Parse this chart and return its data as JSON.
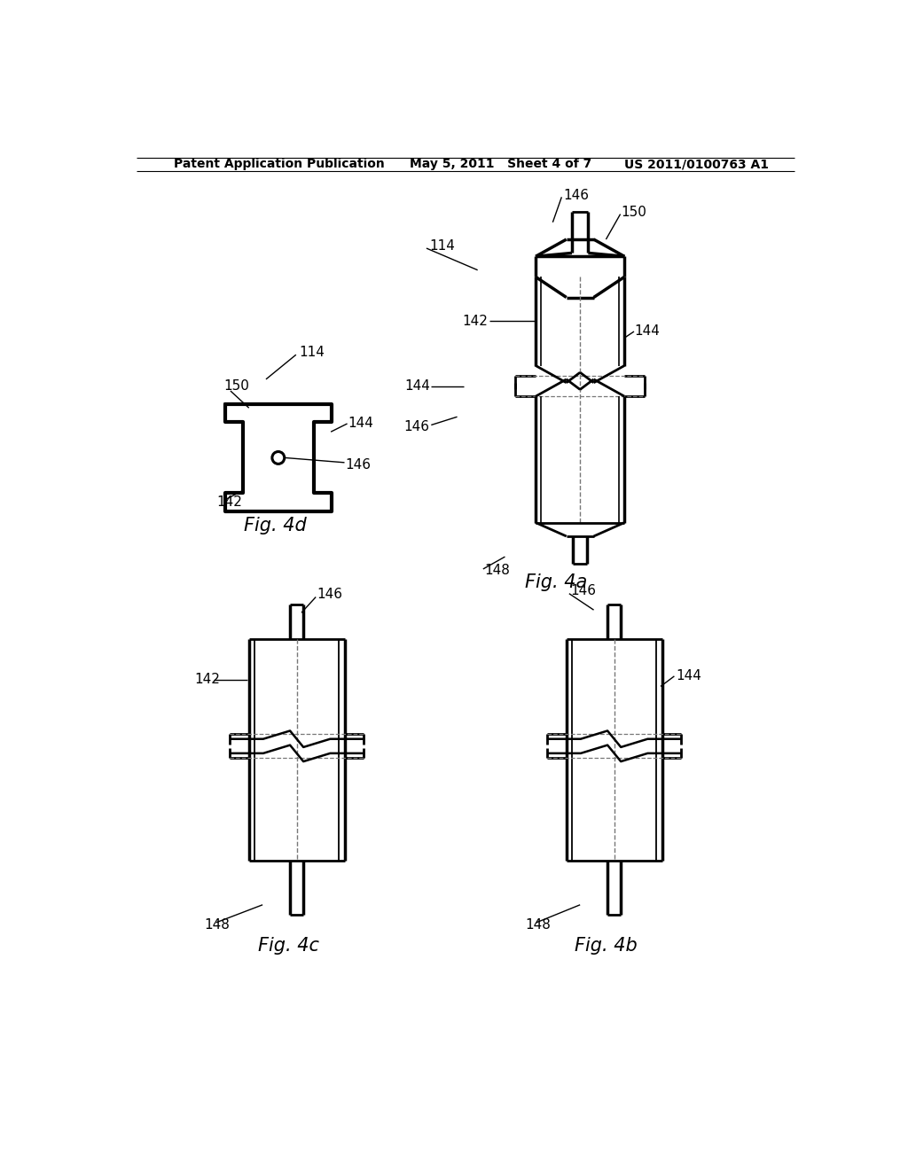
{
  "bg_color": "#ffffff",
  "header_left": "Patent Application Publication",
  "header_mid": "May 5, 2011   Sheet 4 of 7",
  "header_right": "US 2011/0100763 A1",
  "fig4d_label": "Fig. 4d",
  "fig4a_label": "Fig. 4a",
  "fig4c_label": "Fig. 4c",
  "fig4b_label": "Fig. 4b",
  "line_color": "#000000",
  "dashed_color": "#777777",
  "label_fontsize": 11,
  "figcap_fontsize": 15
}
